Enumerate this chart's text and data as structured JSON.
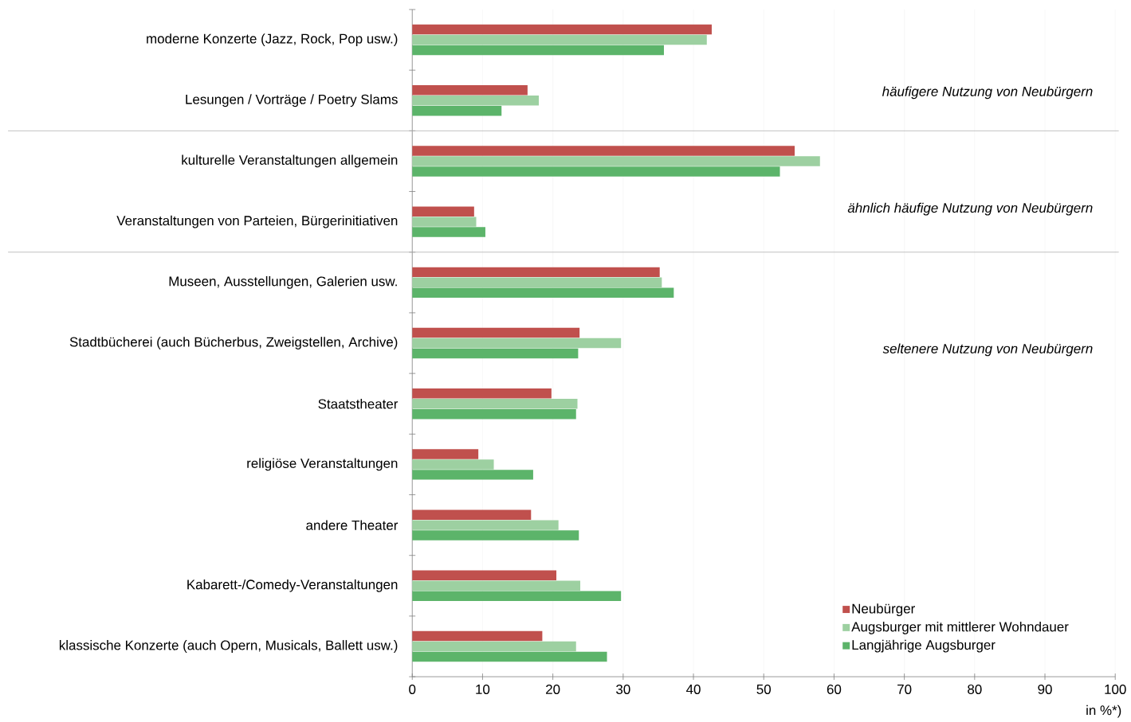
{
  "chart_data": {
    "type": "bar",
    "orientation": "horizontal",
    "xlabel": "in %*)",
    "categories": [
      "moderne Konzerte (Jazz, Rock, Pop usw.)",
      "Lesungen / Vorträge / Poetry Slams",
      "kulturelle Veranstaltungen allgemein",
      "Veranstaltungen von Parteien, Bürgerinitiativen",
      "Museen, Ausstellungen, Galerien usw.",
      "Stadtbücherei (auch Bücherbus, Zweigstellen, Archive)",
      "Staatstheater",
      "religiöse Veranstaltungen",
      "andere Theater",
      "Kabarett-/Comedy-Veranstaltungen",
      "klassische Konzerte (auch Opern, Musicals, Ballett usw.)"
    ],
    "series": [
      {
        "name": "Neubürger",
        "color": "#c0504d",
        "values": [
          42.6,
          16.4,
          54.4,
          8.8,
          35.2,
          23.8,
          19.8,
          9.4,
          16.9,
          20.5,
          18.5
        ]
      },
      {
        "name": "Augsburger mit mittlerer Wohndauer",
        "color": "#9dd0a1",
        "values": [
          41.9,
          18.0,
          58.0,
          9.1,
          35.5,
          29.7,
          23.5,
          11.6,
          20.8,
          23.9,
          23.3
        ]
      },
      {
        "name": "Langjährige Augsburger",
        "color": "#5cb46a",
        "values": [
          35.8,
          12.7,
          52.3,
          10.4,
          37.2,
          23.6,
          23.3,
          17.2,
          23.7,
          29.7,
          27.7
        ]
      }
    ],
    "xlim": [
      0,
      100
    ],
    "xticks": [
      0,
      10,
      20,
      30,
      40,
      50,
      60,
      70,
      80,
      90,
      100
    ],
    "grid": "x",
    "legend": "bottom right",
    "annotations": [
      "häufigere Nutzung von Neubürgern",
      "ähnlich häufige Nutzung von Neubürgern",
      "seltenere Nutzung von Neubürgern"
    ]
  }
}
